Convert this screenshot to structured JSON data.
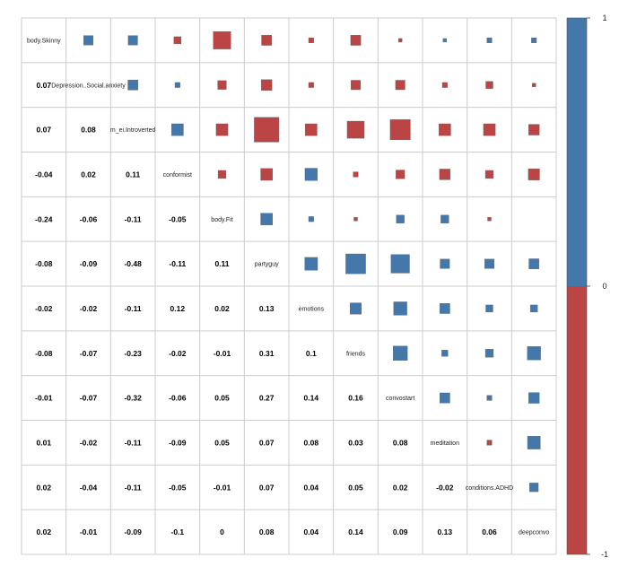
{
  "chart_data": {
    "type": "heatmap",
    "subtype": "correlation-matrix",
    "upper_panel": "squares",
    "lower_panel": "numbers",
    "diagonal": "variable-names",
    "variables": [
      "body.Skinny",
      "Depression..Social.anxiety",
      "m_ei.Introverted",
      "conformist",
      "body.Fit",
      "partyguy",
      "emotions",
      "friends",
      "convostart",
      "meditation",
      "conditions.ADHD",
      "deepconvo"
    ],
    "matrix": [
      [
        1.0,
        0.07,
        0.07,
        -0.04,
        -0.24,
        -0.08,
        -0.02,
        -0.08,
        -0.01,
        0.01,
        0.02,
        0.02
      ],
      [
        0.07,
        1.0,
        0.08,
        0.02,
        -0.06,
        -0.09,
        -0.02,
        -0.07,
        -0.07,
        -0.02,
        -0.04,
        -0.01
      ],
      [
        0.07,
        0.08,
        1.0,
        0.11,
        -0.11,
        -0.48,
        -0.11,
        -0.23,
        -0.32,
        -0.11,
        -0.11,
        -0.09
      ],
      [
        -0.04,
        0.02,
        0.11,
        1.0,
        -0.05,
        -0.11,
        0.12,
        -0.02,
        -0.06,
        -0.09,
        -0.05,
        -0.1
      ],
      [
        -0.24,
        -0.06,
        -0.11,
        -0.05,
        1.0,
        0.11,
        0.02,
        -0.01,
        0.05,
        0.05,
        -0.01,
        0
      ],
      [
        -0.08,
        -0.09,
        -0.48,
        -0.11,
        0.11,
        1.0,
        0.13,
        0.31,
        0.27,
        0.07,
        0.07,
        0.08
      ],
      [
        -0.02,
        -0.02,
        -0.11,
        0.12,
        0.02,
        0.13,
        1.0,
        0.1,
        0.14,
        0.08,
        0.04,
        0.04
      ],
      [
        -0.08,
        -0.07,
        -0.23,
        -0.02,
        -0.01,
        0.31,
        0.1,
        1.0,
        0.16,
        0.03,
        0.05,
        0.14
      ],
      [
        -0.01,
        -0.07,
        -0.32,
        -0.06,
        0.05,
        0.27,
        0.14,
        0.16,
        1.0,
        0.08,
        0.02,
        0.09
      ],
      [
        0.01,
        -0.02,
        -0.11,
        -0.09,
        0.05,
        0.07,
        0.08,
        0.03,
        0.08,
        1.0,
        -0.02,
        0.13
      ],
      [
        0.02,
        -0.04,
        -0.11,
        -0.05,
        -0.01,
        0.07,
        0.04,
        0.05,
        0.02,
        -0.02,
        1.0,
        0.06
      ],
      [
        0.02,
        -0.01,
        -0.09,
        -0.1,
        0,
        0.08,
        0.04,
        0.14,
        0.09,
        0.13,
        0.06,
        1.0
      ]
    ],
    "lower_labels": [
      [],
      [
        "0.07"
      ],
      [
        "0.07",
        "0.08"
      ],
      [
        "-0.04",
        "0.02",
        "0.11"
      ],
      [
        "-0.24",
        "-0.06",
        "-0.11",
        "-0.05"
      ],
      [
        "-0.08",
        "-0.09",
        "-0.48",
        "-0.11",
        "0.11"
      ],
      [
        "-0.02",
        "-0.02",
        "-0.11",
        "0.12",
        "0.02",
        "0.13"
      ],
      [
        "-0.08",
        "-0.07",
        "-0.23",
        "-0.02",
        "-0.01",
        "0.31",
        "0.1"
      ],
      [
        "-0.01",
        "-0.07",
        "-0.32",
        "-0.06",
        "0.05",
        "0.27",
        "0.14",
        "0.16"
      ],
      [
        "0.01",
        "-0.02",
        "-0.11",
        "-0.09",
        "0.05",
        "0.07",
        "0.08",
        "0.03",
        "0.08"
      ],
      [
        "0.02",
        "-0.04",
        "-0.11",
        "-0.05",
        "-0.01",
        "0.07",
        "0.04",
        "0.05",
        "0.02",
        "-0.02"
      ],
      [
        "0.02",
        "-0.01",
        "-0.09",
        "-0.1",
        "0",
        "0.08",
        "0.04",
        "0.14",
        "0.09",
        "0.13",
        "0.06"
      ]
    ],
    "colors": {
      "positive": "#4477aa",
      "negative": "#bb4444",
      "grid": "#cccccc",
      "square_border": "#666666"
    },
    "legend": {
      "position": "right",
      "range": [
        -1,
        1
      ],
      "ticks": [
        {
          "value": 1,
          "label": "1"
        },
        {
          "value": 0,
          "label": "0"
        },
        {
          "value": -1,
          "label": "-1"
        }
      ]
    }
  }
}
